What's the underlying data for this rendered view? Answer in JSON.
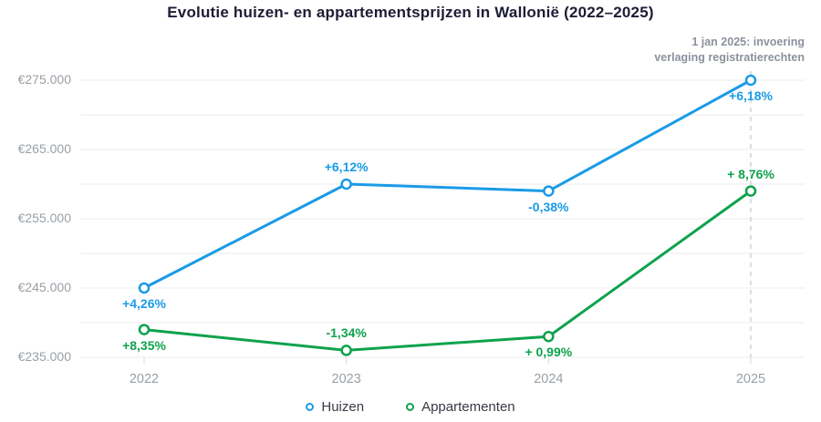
{
  "title": "Evolutie huizen- en appartementsprijzen in Wallonië (2022–2025)",
  "annotation": {
    "line1": "1 jan 2025: invoering",
    "line2": "verlaging registratierechten"
  },
  "colors": {
    "huizen": "#1a9be6",
    "appartementen": "#0ea24d",
    "grid": "#ebebeb",
    "tick": "#d9d9d9",
    "dashed_line": "#cfd2d6",
    "axis_text": "#9aa0a6",
    "annotation_text": "#8b919c",
    "title_text": "#1d1c35",
    "legend_text": "#3a3a45",
    "marker_fill": "#ffffff"
  },
  "chart_data": {
    "type": "line",
    "title": "Evolutie huizen- en appartementsprijzen in Wallonië (2022–2025)",
    "categories": [
      "2022",
      "2023",
      "2024",
      "2025"
    ],
    "ylim": [
      235000,
      275000
    ],
    "grid_step": 5000,
    "grid": true,
    "legend_position": "bottom",
    "y_ticks": [
      {
        "value": 235000,
        "label": "€235.000"
      },
      {
        "value": 245000,
        "label": "€245.000"
      },
      {
        "value": 255000,
        "label": "€255.000"
      },
      {
        "value": 265000,
        "label": "€265.000"
      },
      {
        "value": 275000,
        "label": "€275.000"
      }
    ],
    "series": [
      {
        "name": "Huizen",
        "color_key": "huizen",
        "values": [
          245000,
          260000,
          259000,
          275000
        ],
        "point_labels": [
          {
            "text": "+4,26%",
            "position": "below"
          },
          {
            "text": "+6,12%",
            "position": "above"
          },
          {
            "text": "-0,38%",
            "position": "below"
          },
          {
            "text": "+6,18%",
            "position": "below"
          }
        ]
      },
      {
        "name": "Appartementen",
        "color_key": "appartementen",
        "values": [
          239000,
          236000,
          238000,
          259000
        ],
        "point_labels": [
          {
            "text": "+8,35%",
            "position": "below"
          },
          {
            "text": "-1,34%",
            "position": "above"
          },
          {
            "text": "+ 0,99%",
            "position": "below"
          },
          {
            "text": "+ 8,76%",
            "position": "above"
          }
        ]
      }
    ],
    "event_line": {
      "category": "2025"
    }
  },
  "legend": {
    "items": [
      {
        "label": "Huizen",
        "color_key": "huizen"
      },
      {
        "label": "Appartementen",
        "color_key": "appartementen"
      }
    ]
  }
}
